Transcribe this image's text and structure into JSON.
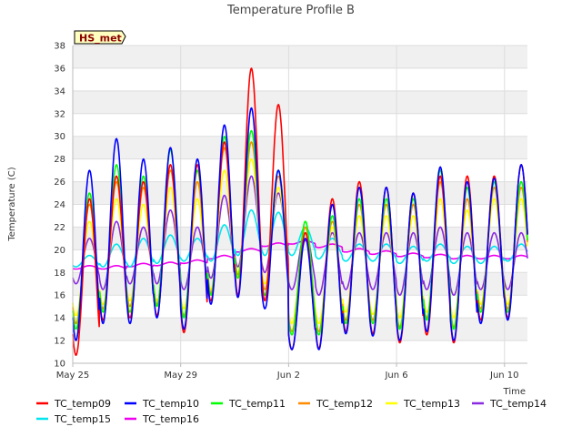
{
  "chart_data": {
    "type": "line",
    "title": "Temperature Profile B",
    "ylabel": "Temperature (C)",
    "xlabel": "Time",
    "annotation": "HS_met",
    "ylim": [
      10,
      38
    ],
    "yticks": [
      10,
      12,
      14,
      16,
      18,
      20,
      22,
      24,
      26,
      28,
      30,
      32,
      34,
      36,
      38
    ],
    "xlim": [
      "2024-05-25",
      "2024-06-10T20:00"
    ],
    "xticks": [
      {
        "label": "May 25",
        "day": 0
      },
      {
        "label": "May 29",
        "day": 4
      },
      {
        "label": "Jun 2",
        "day": 8
      },
      {
        "label": "Jun 6",
        "day": 12
      },
      {
        "label": "Jun 10",
        "day": 16
      }
    ],
    "grid": true,
    "legend_position": "bottom",
    "day_labels": [
      "May 25",
      "May 26",
      "May 27",
      "May 28",
      "May 29",
      "May 30",
      "May 31",
      "Jun 1",
      "Jun 2",
      "Jun 3",
      "Jun 4",
      "Jun 5",
      "Jun 6",
      "Jun 7",
      "Jun 8",
      "Jun 9",
      "Jun 10"
    ],
    "series": [
      {
        "name": "TC_temp09",
        "color": "#ff0000",
        "daily_min": [
          10.7,
          13.8,
          14.0,
          14.2,
          12.7,
          15.5,
          16.0,
          15.5,
          11.2,
          11.3,
          12.8,
          12.6,
          11.8,
          12.5,
          11.8,
          13.8,
          14.0
        ],
        "daily_max": [
          24.5,
          26.5,
          26.0,
          27.5,
          27.5,
          29.5,
          36.0,
          32.8,
          21.5,
          24.5,
          26.0,
          25.5,
          25.0,
          26.5,
          26.5,
          26.5,
          27.5
        ]
      },
      {
        "name": "TC_temp10",
        "color": "#0000ff",
        "daily_min": [
          12.0,
          13.5,
          13.5,
          14.0,
          13.0,
          15.2,
          15.8,
          14.8,
          11.2,
          11.2,
          12.6,
          12.4,
          12.0,
          12.8,
          12.0,
          13.5,
          13.8
        ],
        "daily_max": [
          27.0,
          29.8,
          28.0,
          29.0,
          28.0,
          31.0,
          32.5,
          27.0,
          21.0,
          24.0,
          25.5,
          25.5,
          25.0,
          27.3,
          26.0,
          26.3,
          27.5
        ]
      },
      {
        "name": "TC_temp11",
        "color": "#00ff00",
        "daily_min": [
          13.0,
          14.5,
          14.5,
          15.0,
          14.0,
          16.0,
          17.5,
          16.0,
          12.5,
          12.5,
          13.5,
          13.5,
          13.0,
          13.8,
          13.0,
          14.5,
          14.5
        ],
        "daily_max": [
          25.0,
          27.5,
          26.5,
          28.8,
          27.0,
          30.0,
          30.5,
          27.0,
          22.5,
          23.0,
          24.5,
          24.5,
          24.5,
          27.0,
          25.5,
          26.0,
          26.0
        ]
      },
      {
        "name": "TC_temp12",
        "color": "#ff8c00",
        "daily_min": [
          13.5,
          14.8,
          15.0,
          15.2,
          14.2,
          16.2,
          17.8,
          16.5,
          12.8,
          12.8,
          13.8,
          13.8,
          13.2,
          14.0,
          13.2,
          14.8,
          14.8
        ],
        "daily_max": [
          24.0,
          26.0,
          25.5,
          27.0,
          26.0,
          29.0,
          29.5,
          26.5,
          22.0,
          22.5,
          24.0,
          24.0,
          24.0,
          26.0,
          24.5,
          25.5,
          25.5
        ]
      },
      {
        "name": "TC_temp13",
        "color": "#ffff00",
        "daily_min": [
          14.2,
          15.2,
          15.5,
          15.5,
          14.8,
          16.5,
          18.0,
          17.0,
          13.5,
          13.5,
          14.5,
          14.3,
          14.0,
          14.5,
          14.0,
          15.2,
          15.2
        ],
        "daily_max": [
          22.5,
          24.5,
          24.0,
          25.5,
          24.5,
          27.0,
          28.0,
          25.5,
          21.5,
          22.0,
          23.0,
          23.0,
          23.0,
          24.5,
          23.5,
          24.5,
          24.5
        ]
      },
      {
        "name": "TC_temp14",
        "color": "#8a2be2",
        "daily_min": [
          17.0,
          16.5,
          17.0,
          17.0,
          16.5,
          17.5,
          18.5,
          18.0,
          16.5,
          16.0,
          16.5,
          16.5,
          16.0,
          16.5,
          16.0,
          16.5,
          16.5
        ],
        "daily_max": [
          21.0,
          22.5,
          22.0,
          23.5,
          22.0,
          24.8,
          26.5,
          25.0,
          21.5,
          21.5,
          21.5,
          21.5,
          21.5,
          22.0,
          21.5,
          21.5,
          21.5
        ]
      },
      {
        "name": "TC_temp15",
        "color": "#00e5ee",
        "daily_min": [
          18.5,
          18.5,
          18.5,
          18.8,
          19.0,
          19.0,
          19.5,
          19.5,
          19.5,
          19.2,
          19.0,
          19.0,
          18.8,
          19.0,
          18.8,
          18.8,
          19.0
        ],
        "daily_max": [
          19.5,
          20.5,
          21.0,
          21.3,
          21.0,
          22.2,
          23.5,
          23.3,
          22.0,
          21.0,
          20.5,
          20.5,
          20.3,
          20.5,
          20.3,
          20.3,
          20.5
        ]
      },
      {
        "name": "TC_temp16",
        "color": "#ee00ee",
        "daily_min": [
          18.3,
          18.3,
          18.5,
          18.6,
          18.8,
          19.2,
          19.8,
          20.3,
          20.5,
          20.2,
          19.8,
          19.6,
          19.4,
          19.3,
          19.2,
          19.2,
          19.2
        ],
        "daily_max": [
          18.6,
          18.6,
          18.8,
          18.9,
          19.1,
          19.5,
          20.1,
          20.6,
          20.8,
          20.5,
          20.1,
          19.9,
          19.7,
          19.6,
          19.5,
          19.5,
          19.5
        ]
      }
    ]
  }
}
